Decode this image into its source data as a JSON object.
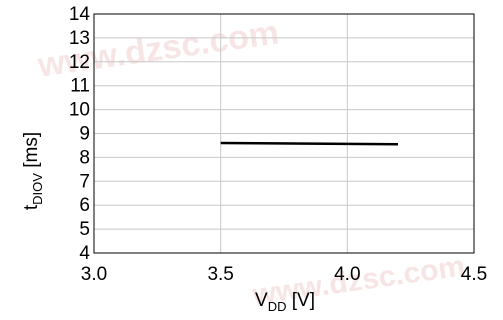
{
  "chart_data": {
    "type": "line",
    "title": "",
    "xlabel": {
      "main": "V",
      "sub": "DD",
      "unit": " [V]"
    },
    "ylabel": {
      "main": "t",
      "sub": "DIOV",
      "unit": " [ms]"
    },
    "xlim": [
      3.0,
      4.5
    ],
    "ylim": [
      4,
      14
    ],
    "xticks": [
      {
        "v": 3.0,
        "label": "3.0"
      },
      {
        "v": 3.5,
        "label": "3.5"
      },
      {
        "v": 4.0,
        "label": "4.0"
      },
      {
        "v": 4.5,
        "label": "4.5"
      }
    ],
    "yticks": [
      4,
      5,
      6,
      7,
      8,
      9,
      10,
      11,
      12,
      13,
      14
    ],
    "grid": true,
    "legend": "none",
    "series": [
      {
        "x": [
          3.5,
          4.2
        ],
        "y": [
          8.6,
          8.55
        ]
      }
    ],
    "colors": {
      "line": "#000000",
      "grid": "#c8c8c8",
      "frame": "#000000"
    }
  },
  "watermark": {
    "text": "www.dzsc.com",
    "color": "#e8b4b4"
  }
}
